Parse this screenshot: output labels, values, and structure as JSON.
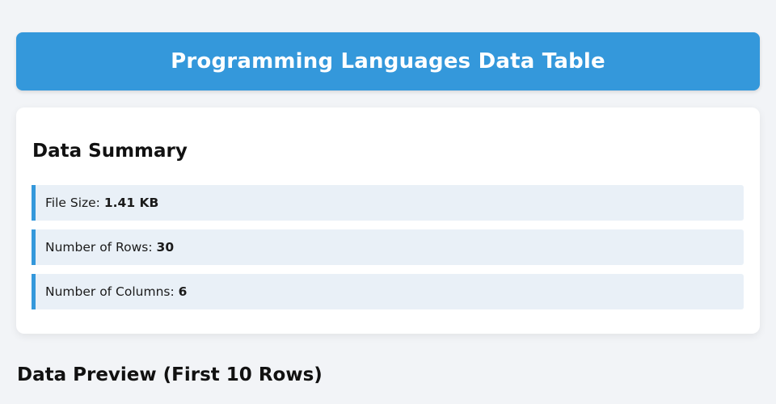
{
  "colors": {
    "accent": "#3498db",
    "page_background": "#f2f4f7",
    "row_background": "#e9f0f7",
    "header_text": "#ffffff",
    "body_text": "#1b1b1b"
  },
  "header": {
    "title": "Programming Languages Data Table"
  },
  "summary": {
    "heading": "Data Summary",
    "items": [
      {
        "label": "File Size:",
        "value": "1.41 KB"
      },
      {
        "label": "Number of Rows:",
        "value": "30"
      },
      {
        "label": "Number of Columns:",
        "value": "6"
      }
    ]
  },
  "preview": {
    "heading": "Data Preview (First 10 Rows)"
  }
}
